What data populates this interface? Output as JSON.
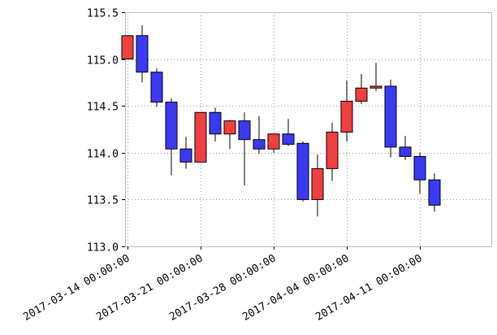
{
  "chart_data": {
    "type": "candlestick",
    "title": "",
    "xlabel": "",
    "ylabel": "",
    "ylim": [
      113.0,
      115.5
    ],
    "yticks": [
      "113.0",
      "113.5",
      "114.0",
      "114.5",
      "115.0",
      "115.5"
    ],
    "xtick_labels": [
      {
        "index": 0,
        "label": "2017-03-14 00:00:00"
      },
      {
        "index": 5,
        "label": "2017-03-21 00:00:00"
      },
      {
        "index": 10,
        "label": "2017-03-28 00:00:00"
      },
      {
        "index": 15,
        "label": "2017-04-04 00:00:00"
      },
      {
        "index": 20,
        "label": "2017-04-11 00:00:00"
      }
    ],
    "grid": true,
    "colors": {
      "up": "#f04040",
      "down": "#3a3af5"
    },
    "candles": [
      {
        "open": 115.0,
        "high": 115.25,
        "low": 115.0,
        "close": 115.25
      },
      {
        "open": 115.25,
        "high": 115.36,
        "low": 114.75,
        "close": 114.86
      },
      {
        "open": 114.86,
        "high": 114.9,
        "low": 114.49,
        "close": 114.54
      },
      {
        "open": 114.54,
        "high": 114.58,
        "low": 113.76,
        "close": 114.04
      },
      {
        "open": 114.04,
        "high": 114.17,
        "low": 113.83,
        "close": 113.9
      },
      {
        "open": 113.9,
        "high": 114.43,
        "low": 113.9,
        "close": 114.43
      },
      {
        "open": 114.43,
        "high": 114.48,
        "low": 114.12,
        "close": 114.2
      },
      {
        "open": 114.2,
        "high": 114.35,
        "low": 114.04,
        "close": 114.34
      },
      {
        "open": 114.34,
        "high": 114.43,
        "low": 113.65,
        "close": 114.14
      },
      {
        "open": 114.14,
        "high": 114.39,
        "low": 113.99,
        "close": 114.04
      },
      {
        "open": 114.04,
        "high": 114.2,
        "low": 114.0,
        "close": 114.2
      },
      {
        "open": 114.2,
        "high": 114.36,
        "low": 114.07,
        "close": 114.09
      },
      {
        "open": 114.1,
        "high": 114.12,
        "low": 113.48,
        "close": 113.5
      },
      {
        "open": 113.5,
        "high": 113.98,
        "low": 113.32,
        "close": 113.83
      },
      {
        "open": 113.83,
        "high": 114.32,
        "low": 113.7,
        "close": 114.22
      },
      {
        "open": 114.22,
        "high": 114.77,
        "low": 114.12,
        "close": 114.55
      },
      {
        "open": 114.55,
        "high": 114.84,
        "low": 114.52,
        "close": 114.69
      },
      {
        "open": 114.69,
        "high": 114.96,
        "low": 114.66,
        "close": 114.71
      },
      {
        "open": 114.71,
        "high": 114.78,
        "low": 113.95,
        "close": 114.06
      },
      {
        "open": 114.06,
        "high": 114.18,
        "low": 113.92,
        "close": 113.96
      },
      {
        "open": 113.96,
        "high": 114.0,
        "low": 113.56,
        "close": 113.71
      },
      {
        "open": 113.71,
        "high": 113.78,
        "low": 113.37,
        "close": 113.44
      }
    ]
  }
}
